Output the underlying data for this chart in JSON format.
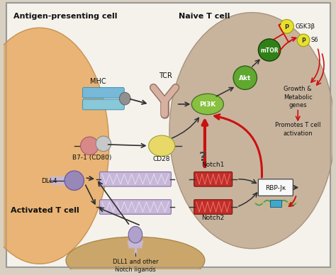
{
  "figsize": [
    4.74,
    3.88
  ],
  "dpi": 100,
  "bg_outer": "#d8d0c0",
  "bg_inner": "#f5f2ec",
  "apc_color": "#e8aa60",
  "apc_edge": "#c08840",
  "tc_color": "#c0aa90",
  "tc_edge": "#a08870",
  "act_color": "#c8a060",
  "act_edge": "#a08040",
  "mhc_top": "#78b8d8",
  "mhc_bot": "#88c8d8",
  "mhc_pep": "#909090",
  "tcr_color": "#d8b0a0",
  "tcr_edge": "#907060",
  "pi3k_color": "#88c040",
  "pi3k_edge": "#507030",
  "akt_color": "#60a830",
  "akt_edge": "#306010",
  "mtor_color": "#308018",
  "mtor_edge": "#184008",
  "gsk_color": "#e8e030",
  "gsk_edge": "#a0a000",
  "s6_color": "#e8e030",
  "s6_edge": "#a0a000",
  "b71_color": "#d88888",
  "b72_color": "#c8c8c8",
  "cd28_color": "#e8d868",
  "cd28_edge": "#a0a030",
  "dll4_color": "#9888b8",
  "notch_lig_color": "#c8b8d8",
  "notch_lig_edge": "#8870a8",
  "notch_red": "#c03028",
  "notch_red_edge": "#801818",
  "rbpjk_fill": "#f8f8f8",
  "rbpjk_edge": "#404040",
  "dna_green": "#50a050",
  "dna_tan": "#c8b878",
  "rbpjk_box": "#40a8c8",
  "arrow_blk": "#303030",
  "arrow_red": "#cc1010",
  "label_antigen": "Antigen-presenting cell",
  "label_naive": "Naive T cell",
  "label_activated": "Activated T cell"
}
